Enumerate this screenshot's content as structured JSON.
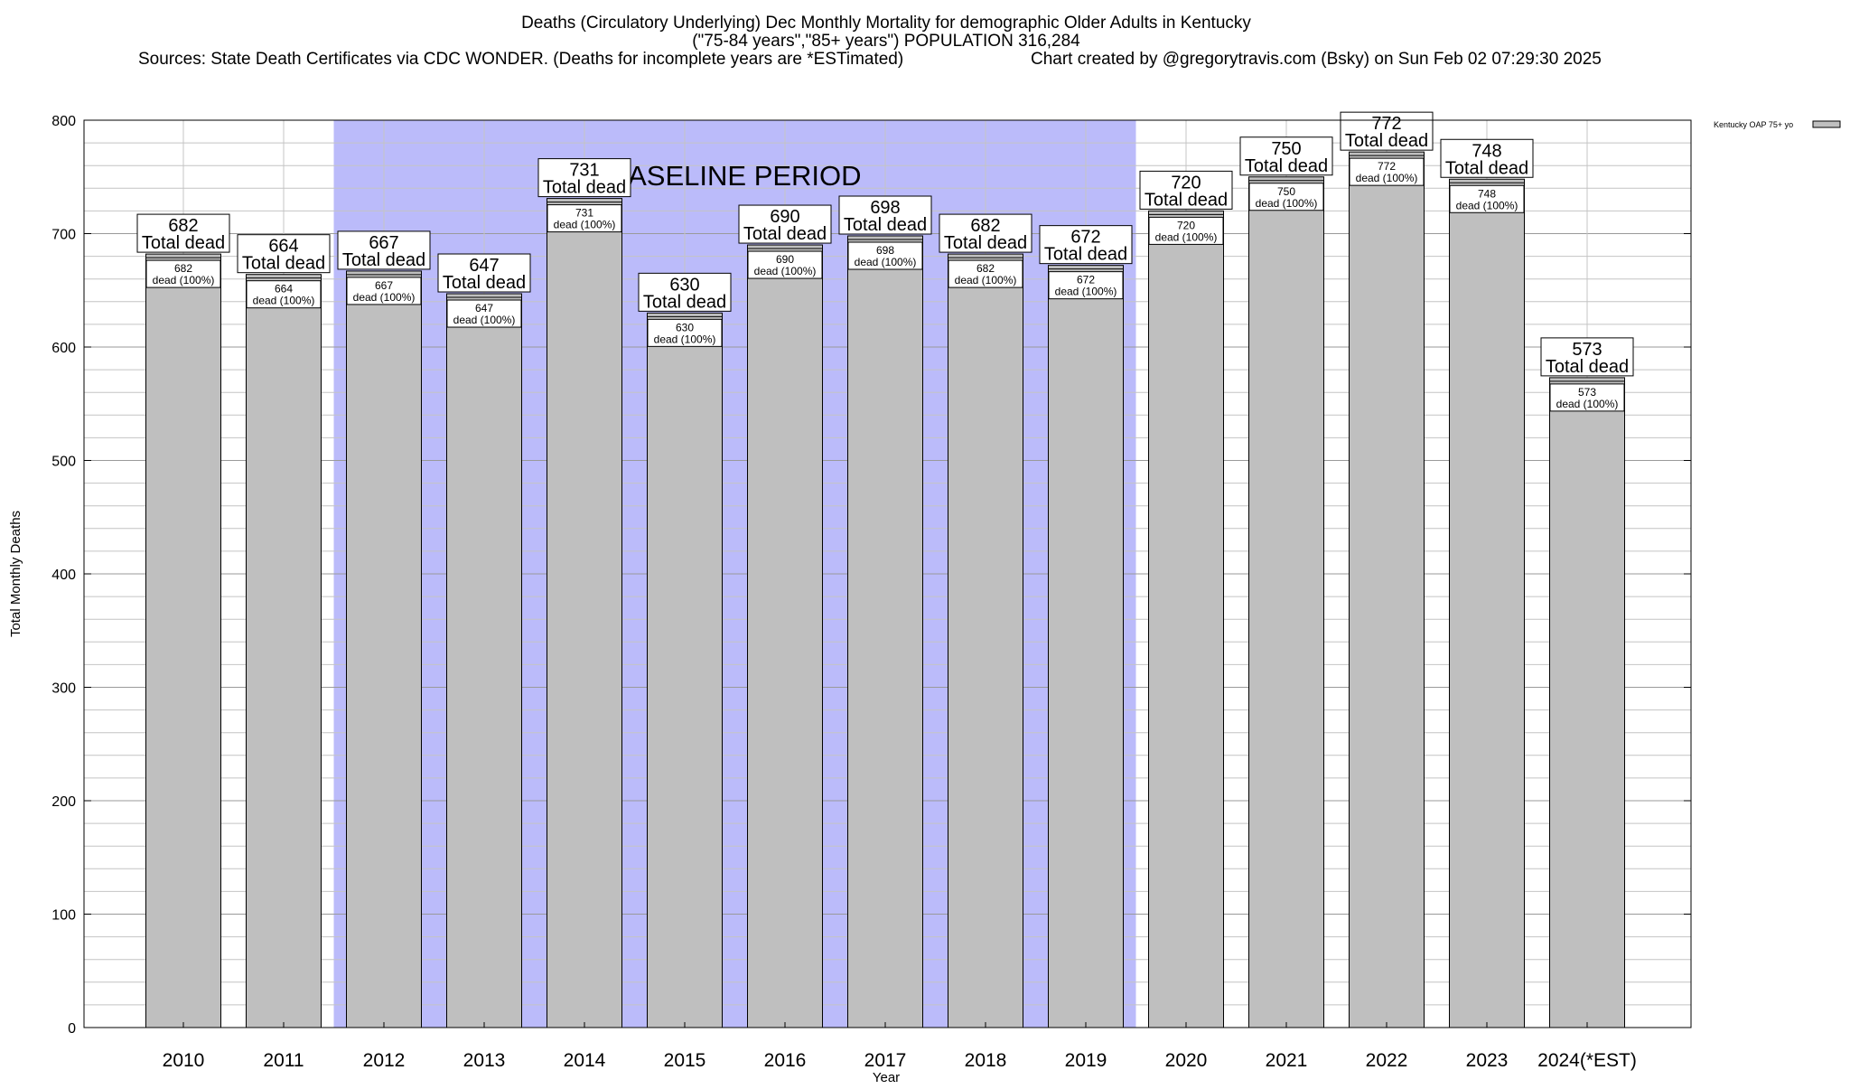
{
  "chart_data": {
    "type": "bar",
    "title_lines": [
      "Deaths (Circulatory Underlying) Dec Monthly Mortality for demographic Older Adults in Kentucky",
      "(\"75-84 years\",\"85+ years\") POPULATION 316,284"
    ],
    "sources": "Sources: State Death Certificates via CDC WONDER. (Deaths for incomplete years are *ESTimated)",
    "credit": "Chart created by @gregorytravis.com (Bsky) on Sun Feb 02 07:29:30 2025",
    "xlabel": "Year",
    "ylabel": "Total Monthly Deaths",
    "ylim": [
      0,
      800
    ],
    "yticks": [
      "0",
      "100",
      "200",
      "300",
      "400",
      "500",
      "600",
      "700",
      "800"
    ],
    "grid": true,
    "legend_placement": "top-right",
    "legend_label": "Kentucky OAP 75+ yo",
    "baseline_label": "BASELINE PERIOD",
    "baseline_range": [
      "2012",
      "2019"
    ],
    "baseline_color": "#bbbbfa",
    "bar_color": "#bfbfbf",
    "total_label": "Total dead",
    "inner_label": "dead (100%)",
    "categories": [
      "2010",
      "2011",
      "2012",
      "2013",
      "2014",
      "2015",
      "2016",
      "2017",
      "2018",
      "2019",
      "2020",
      "2021",
      "2022",
      "2023",
      "2024(*EST)"
    ],
    "series": [
      {
        "name": "Kentucky OAP 75+ yo",
        "values": [
          682,
          664,
          667,
          647,
          731,
          630,
          690,
          698,
          682,
          672,
          720,
          750,
          772,
          748,
          573
        ]
      }
    ]
  }
}
